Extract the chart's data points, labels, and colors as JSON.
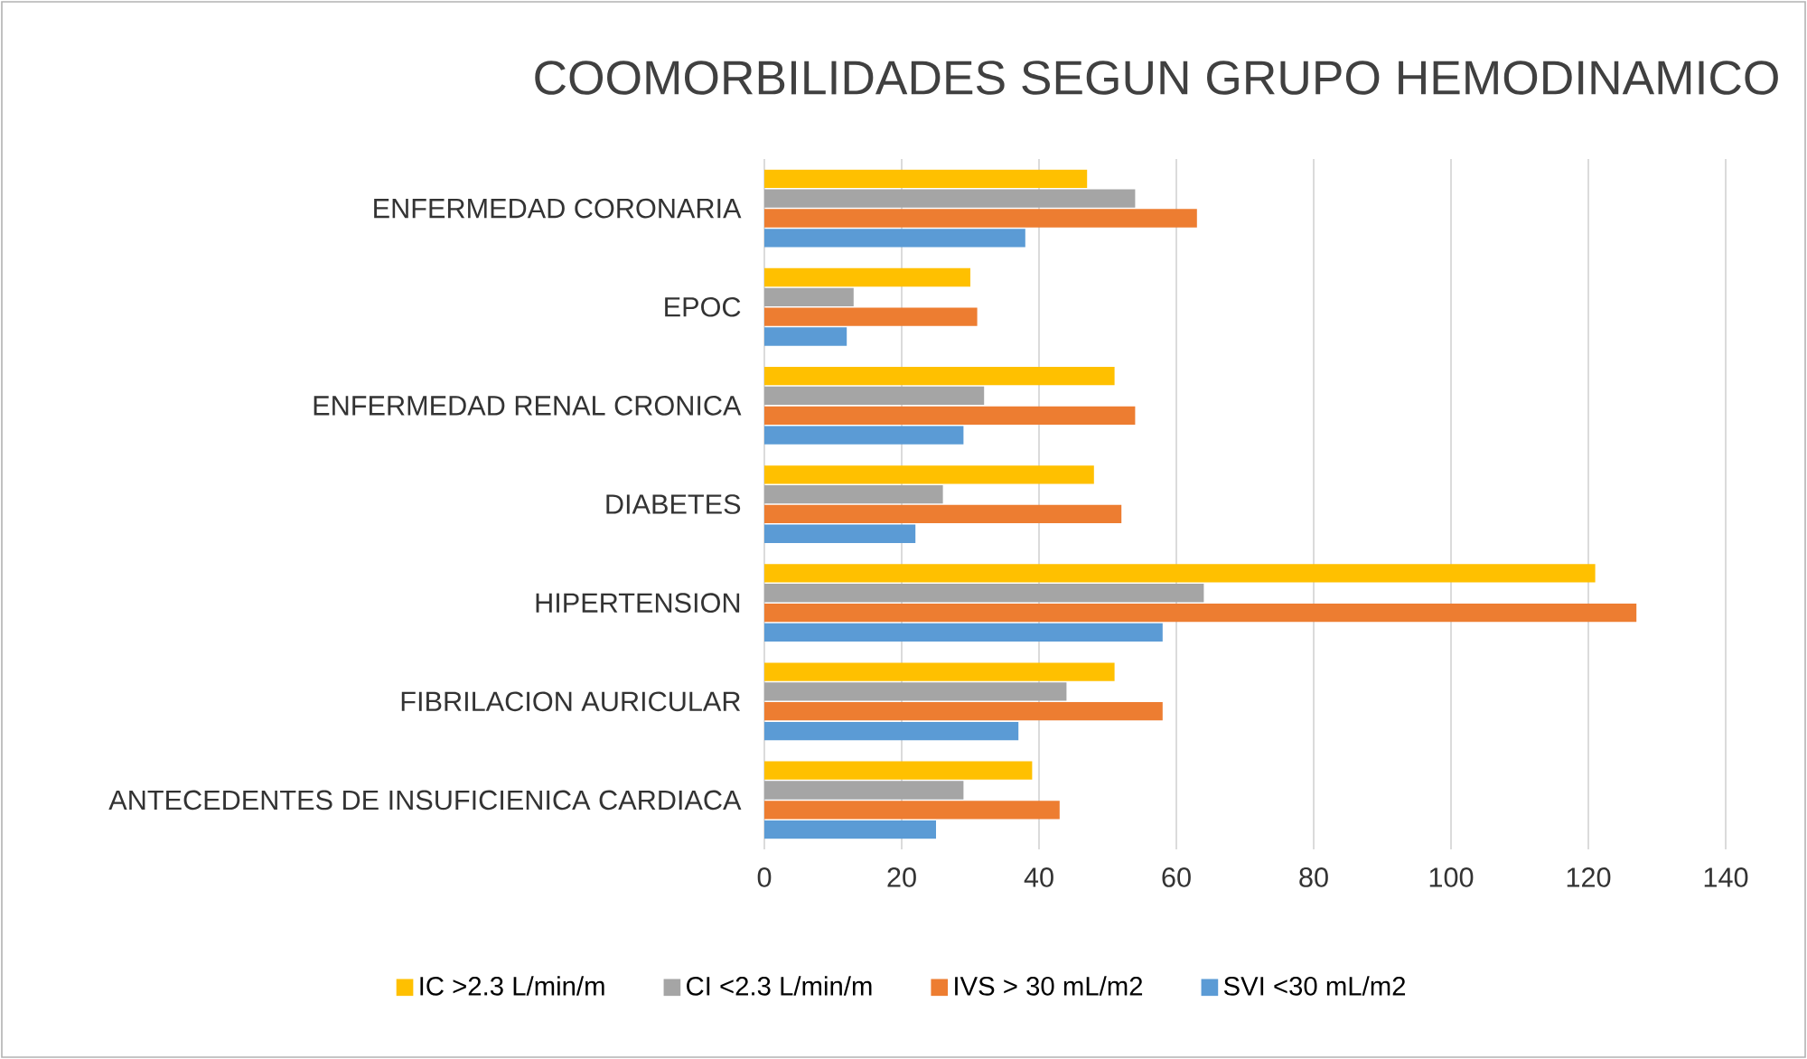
{
  "chart_data": {
    "type": "bar",
    "orientation": "horizontal",
    "title": "COOMORBILIDADES SEGUN GRUPO HEMODINAMICO",
    "categories": [
      "ENFERMEDAD CORONARIA",
      "EPOC",
      "ENFERMEDAD RENAL CRONICA",
      "DIABETES",
      "HIPERTENSION",
      "FIBRILACION AURICULAR",
      "ANTECEDENTES  DE INSUFICIENICA CARDIACA"
    ],
    "series": [
      {
        "name": "IC  >2.3 L/min/m",
        "color": "#ffc000",
        "values": [
          47,
          30,
          51,
          48,
          121,
          51,
          39
        ]
      },
      {
        "name": "CI <2.3 L/min/m",
        "color": "#a5a5a5",
        "values": [
          54,
          13,
          32,
          26,
          64,
          44,
          29
        ]
      },
      {
        "name": "IVS > 30 mL/m2",
        "color": "#ed7d31",
        "values": [
          63,
          31,
          54,
          52,
          127,
          58,
          43
        ]
      },
      {
        "name": "SVI <30 mL/m2",
        "color": "#5b9bd5",
        "values": [
          38,
          12,
          29,
          22,
          58,
          37,
          25
        ]
      }
    ],
    "xlim": [
      0,
      140
    ],
    "xticks": [
      0,
      20,
      40,
      60,
      80,
      100,
      120,
      140
    ],
    "grid": "x",
    "legend": "bottom"
  }
}
